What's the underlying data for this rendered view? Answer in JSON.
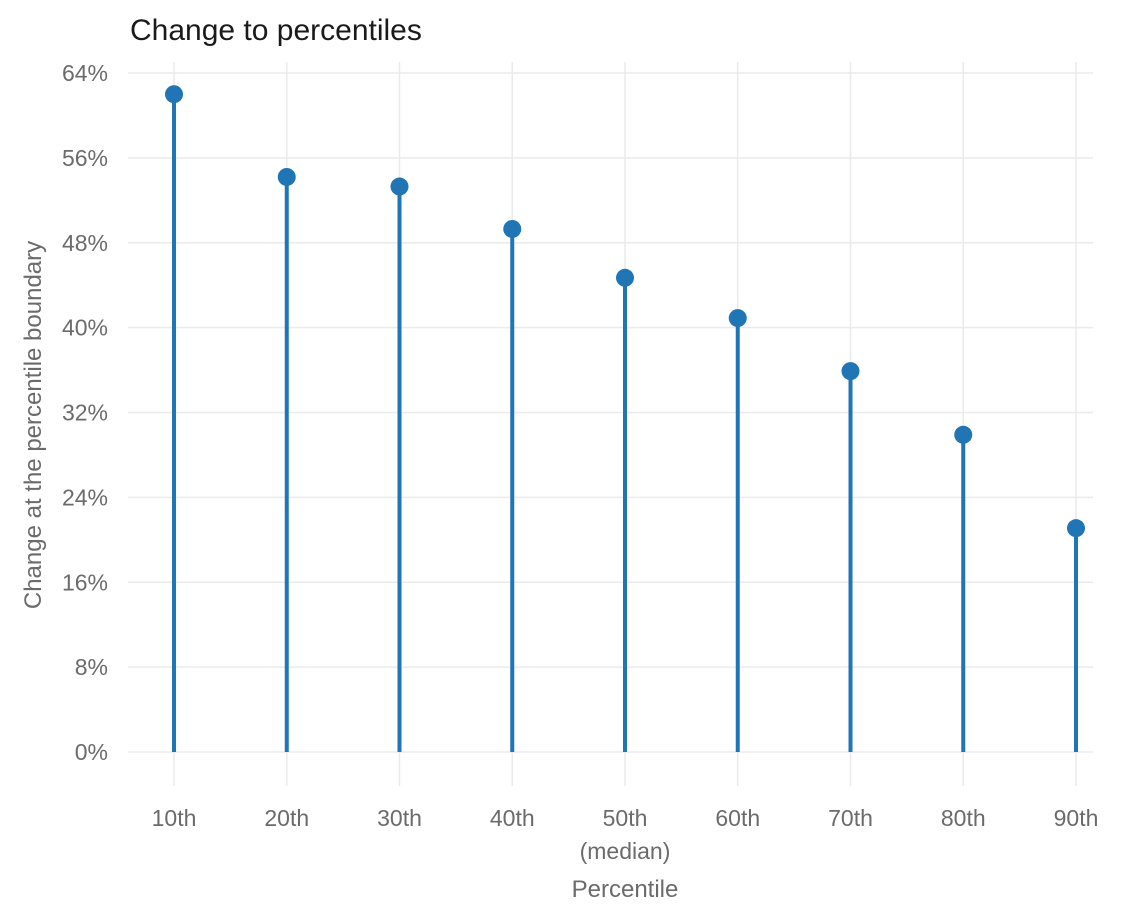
{
  "chart_data": {
    "type": "lollipop",
    "title": "Change to percentiles",
    "xlabel": "Percentile",
    "ylabel": "Change at the percentile boundary",
    "categories": [
      [
        "10th"
      ],
      [
        "20th"
      ],
      [
        "30th"
      ],
      [
        "40th"
      ],
      [
        "50th",
        "(median)"
      ],
      [
        "60th"
      ],
      [
        "70th"
      ],
      [
        "80th"
      ],
      [
        "90th"
      ]
    ],
    "values": [
      62.0,
      54.2,
      53.3,
      49.3,
      44.7,
      40.9,
      35.9,
      29.9,
      21.1
    ],
    "value_unit": "%",
    "ylim": [
      0,
      64
    ],
    "yticks": [
      0,
      8,
      16,
      24,
      32,
      40,
      48,
      56,
      64
    ],
    "ytick_labels": [
      "0%",
      "8%",
      "16%",
      "24%",
      "32%",
      "40%",
      "48%",
      "56%",
      "64%"
    ],
    "grid": true,
    "colors": {
      "series": "#2076b4",
      "grid": "#ebebeb",
      "text": "#6b6b6b",
      "title": "#1a1a1a"
    }
  }
}
